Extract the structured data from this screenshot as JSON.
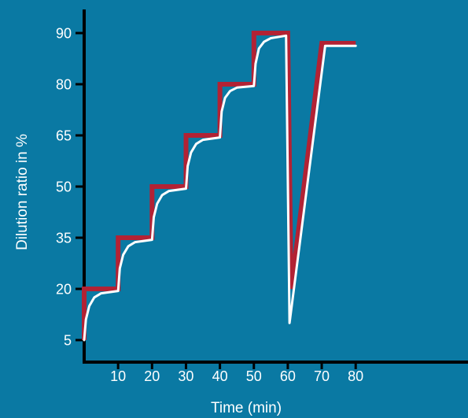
{
  "chart_data": {
    "type": "line",
    "xlabel": "Time (min)",
    "ylabel": "Dilution ratio in %",
    "x_ticks": [
      10,
      20,
      30,
      40,
      50,
      60,
      70,
      80
    ],
    "y_ticks": [
      5,
      20,
      35,
      50,
      65,
      80,
      90
    ],
    "xlim": [
      0,
      80
    ],
    "grid": false,
    "series": [
      {
        "role": "programmed",
        "color": "#b22234",
        "points": [
          [
            0,
            5
          ],
          [
            0,
            20
          ],
          [
            10,
            20
          ],
          [
            10,
            35
          ],
          [
            20,
            35
          ],
          [
            20,
            50
          ],
          [
            30,
            50
          ],
          [
            30,
            65
          ],
          [
            40,
            65
          ],
          [
            40,
            80
          ],
          [
            50,
            80
          ],
          [
            50,
            90
          ],
          [
            60,
            90
          ],
          [
            61,
            20
          ],
          [
            70,
            88
          ],
          [
            80,
            88
          ]
        ]
      },
      {
        "role": "response",
        "color": "#ffffff",
        "points": [
          [
            0,
            5
          ],
          [
            0.5,
            11
          ],
          [
            1.5,
            15
          ],
          [
            3,
            17.5
          ],
          [
            5,
            18.7
          ],
          [
            10,
            19.4
          ],
          [
            10.5,
            26
          ],
          [
            11.5,
            30
          ],
          [
            13,
            32.5
          ],
          [
            15,
            33.7
          ],
          [
            20,
            34.4
          ],
          [
            20.5,
            41
          ],
          [
            21.5,
            45
          ],
          [
            23,
            47.5
          ],
          [
            25,
            48.7
          ],
          [
            30,
            49.4
          ],
          [
            30.5,
            56
          ],
          [
            31.5,
            60
          ],
          [
            33,
            62.5
          ],
          [
            35,
            63.7
          ],
          [
            40,
            64.4
          ],
          [
            40.5,
            72
          ],
          [
            41.5,
            76
          ],
          [
            43,
            78
          ],
          [
            45,
            79
          ],
          [
            50,
            79.5
          ],
          [
            50.5,
            84
          ],
          [
            51.5,
            87
          ],
          [
            53,
            88.3
          ],
          [
            55,
            89
          ],
          [
            59.5,
            89.5
          ],
          [
            60.5,
            10
          ],
          [
            71,
            87.5
          ],
          [
            80,
            87.5
          ]
        ]
      }
    ]
  }
}
